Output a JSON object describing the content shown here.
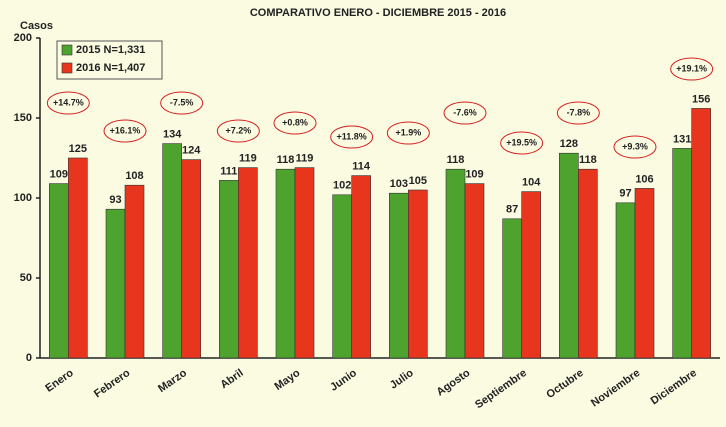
{
  "chart_data": {
    "type": "bar",
    "title": "COMPARATIVO ENERO - DICIEMBRE 2015 - 2016",
    "y_label": "Casos",
    "categories": [
      "Enero",
      "Febrero",
      "Marzo",
      "Abril",
      "Mayo",
      "Junio",
      "Julio",
      "Agosto",
      "Septiembre",
      "Octubre",
      "Noviembre",
      "Diciembre"
    ],
    "series": [
      {
        "name": "2015 N=1,331",
        "color": "#4ea32e",
        "values": [
          109,
          93,
          134,
          111,
          118,
          102,
          103,
          118,
          87,
          128,
          97,
          131
        ]
      },
      {
        "name": "2016 N=1,407",
        "color": "#e8361e",
        "values": [
          125,
          108,
          124,
          119,
          119,
          114,
          105,
          109,
          104,
          118,
          106,
          156
        ]
      }
    ],
    "annotations": [
      "+14.7%",
      "+16.1%",
      "-7.5%",
      "+7.2%",
      "+0.8%",
      "+11.8%",
      "+1.9%",
      "-7.6%",
      "+19.5%",
      "-7.8%",
      "+9.3%",
      "+19.1%"
    ],
    "ylim": [
      0,
      200
    ],
    "yticks": [
      0,
      50,
      100,
      150,
      200
    ],
    "grid": false,
    "legend": "upper left"
  }
}
